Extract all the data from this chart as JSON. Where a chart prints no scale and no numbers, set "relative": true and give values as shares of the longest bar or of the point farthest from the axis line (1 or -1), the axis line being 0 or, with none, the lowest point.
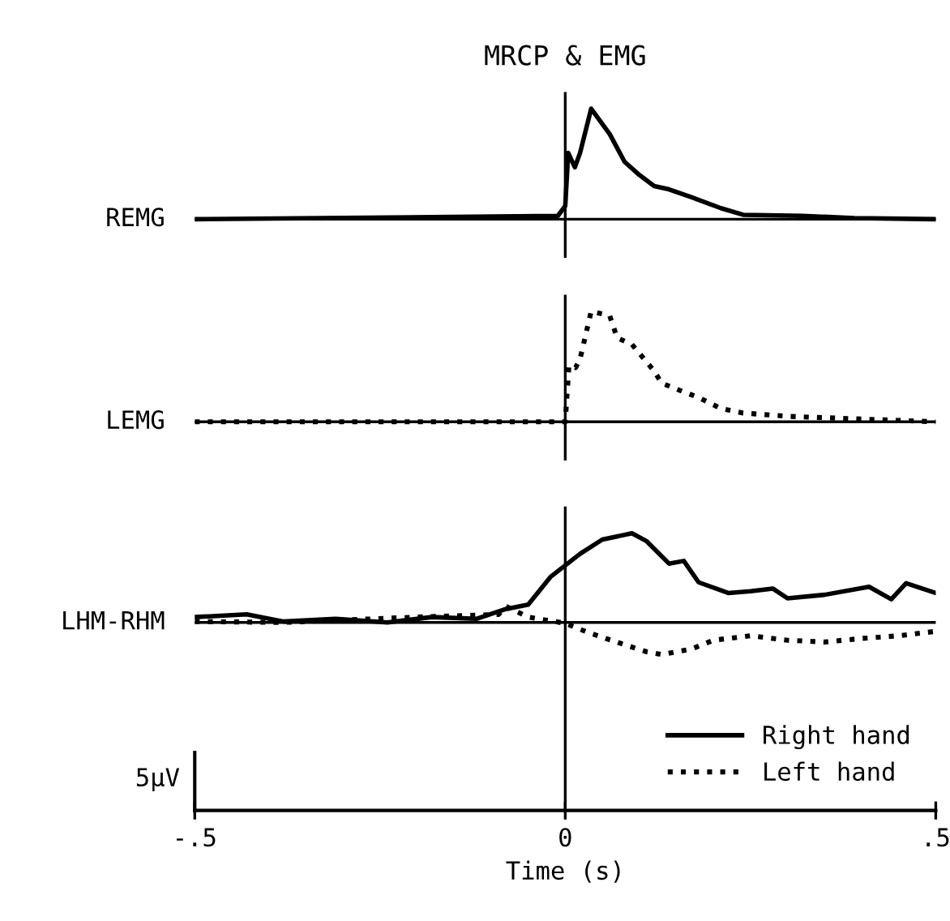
{
  "chart_data": [
    {
      "type": "line",
      "title": "MRCP & EMG",
      "ylabel": "REMG",
      "relative": true,
      "tick_labels": false,
      "grid": false,
      "legend": false,
      "xlim": [
        -0.5,
        0.5
      ],
      "ref_lines": [
        {
          "axis": "x",
          "value": 0
        }
      ],
      "series": [
        {
          "color": "#000000",
          "line_style": "solid",
          "x": [
            -0.5,
            -0.01,
            0,
            0.004,
            0.013,
            0.02,
            0.035,
            0.06,
            0.08,
            0.1,
            0.12,
            0.14,
            0.17,
            0.21,
            0.24,
            0.32,
            0.39,
            0.5
          ],
          "values": [
            0,
            0.03,
            0.12,
            0.6,
            0.47,
            0.6,
            1,
            0.77,
            0.52,
            0.4,
            0.3,
            0.27,
            0.2,
            0.1,
            0.04,
            0.03,
            0.01,
            0
          ]
        }
      ]
    },
    {
      "type": "line",
      "ylabel": "LEMG",
      "relative": true,
      "tick_labels": false,
      "grid": false,
      "legend": false,
      "xlim": [
        -0.5,
        0.5
      ],
      "ref_lines": [
        {
          "axis": "x",
          "value": 0
        }
      ],
      "series": [
        {
          "color": "#000000",
          "line_style": "dotted",
          "x": [
            -0.5,
            0,
            0.005,
            0.014,
            0.02,
            0.035,
            0.06,
            0.07,
            0.09,
            0.12,
            0.13,
            0.16,
            0.18,
            0.21,
            0.24,
            0.3,
            0.38,
            0.5
          ],
          "values": [
            0,
            0,
            0.51,
            0.49,
            0.57,
            1,
            0.96,
            0.76,
            0.7,
            0.46,
            0.35,
            0.27,
            0.22,
            0.12,
            0.08,
            0.05,
            0.03,
            0
          ]
        }
      ]
    },
    {
      "type": "line",
      "ylabel": "LHM-RHM",
      "xlabel": "Time (s)",
      "relative": true,
      "tick_labels": "x",
      "grid": false,
      "legend": "bottom right",
      "xlim": [
        -0.5,
        0.5
      ],
      "xticks": [
        {
          "value": -0.5,
          "label": "-.5"
        },
        0,
        {
          "value": 0.5,
          "label": ".5"
        }
      ],
      "ref_lines": [
        {
          "axis": "x",
          "value": 0
        }
      ],
      "annotations": [
        "5µV"
      ],
      "series": [
        {
          "name": "Right hand",
          "color": "#000000",
          "line_style": "solid",
          "x": [
            -0.5,
            -0.43,
            -0.38,
            -0.31,
            -0.24,
            -0.18,
            -0.12,
            -0.08,
            -0.05,
            -0.02,
            0.02,
            0.05,
            0.09,
            0.11,
            0.14,
            0.16,
            0.18,
            0.22,
            0.25,
            0.28,
            0.3,
            0.35,
            0.41,
            0.44,
            0.46,
            0.5
          ],
          "values": [
            0.06,
            0.09,
            0.01,
            0.04,
            0,
            0.06,
            0.04,
            0.15,
            0.2,
            0.51,
            0.77,
            0.93,
            1,
            0.91,
            0.66,
            0.69,
            0.45,
            0.33,
            0.35,
            0.38,
            0.27,
            0.31,
            0.4,
            0.26,
            0.44,
            0.33
          ]
        },
        {
          "name": "Left hand",
          "color": "#000000",
          "line_style": "dotted",
          "x": [
            -0.5,
            -0.38,
            -0.2,
            -0.09,
            -0.08,
            -0.05,
            0,
            0.03,
            0.08,
            0.11,
            0.13,
            0.17,
            0.2,
            0.25,
            0.3,
            0.35,
            0.4,
            0.45,
            0.5
          ],
          "values": [
            0.01,
            0,
            0.06,
            0.09,
            0.18,
            0.06,
            -0.01,
            -0.11,
            -0.25,
            -0.33,
            -0.36,
            -0.3,
            -0.2,
            -0.15,
            -0.2,
            -0.22,
            -0.18,
            -0.15,
            -0.1
          ]
        }
      ]
    }
  ]
}
